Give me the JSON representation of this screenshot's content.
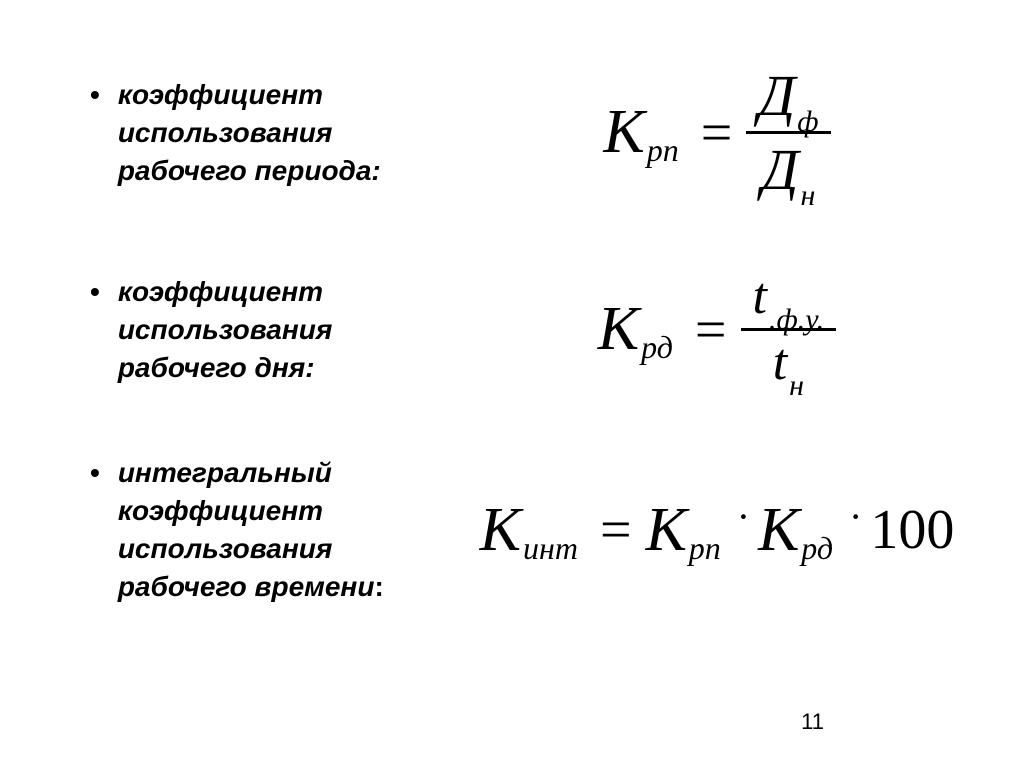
{
  "items": [
    {
      "label": "коэффициент использования рабочего периода:",
      "formula": {
        "lhs_main": "K",
        "lhs_sub": "рп",
        "num_main": "Д",
        "num_sub": "ф",
        "den_main": "Д",
        "den_sub": "н"
      }
    },
    {
      "label": "коэффициент использования рабочего дня:",
      "formula": {
        "lhs_main": "K",
        "lhs_sub": "рд",
        "num_main": "t",
        "num_sub": ".ф.у.",
        "den_main": "t",
        "den_sub": "н"
      }
    },
    {
      "label": "интегральный коэффициент использования рабочего времени",
      "label_suffix": ":",
      "formula": {
        "lhs_main": "K",
        "lhs_sub": "инт",
        "r1_main": "К",
        "r1_sub": "рп",
        "r2_main": "К",
        "r2_sub": "рд",
        "tail": "100"
      }
    }
  ],
  "page_number": "11",
  "colors": {
    "text": "#000000",
    "background": "#ffffff"
  }
}
